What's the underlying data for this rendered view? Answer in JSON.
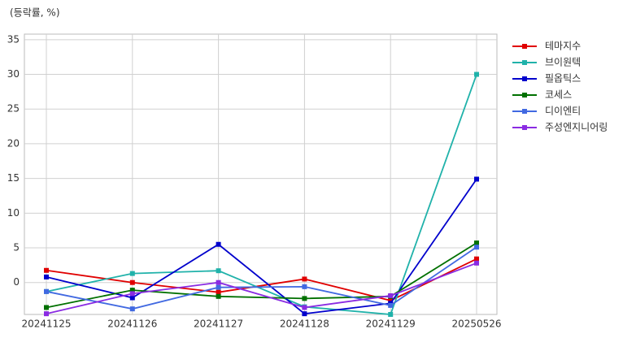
{
  "chart_data": {
    "type": "line",
    "unit_label": "(등락률, %)",
    "categories": [
      "20241125",
      "20241126",
      "20241127",
      "20241128",
      "20241129",
      "20250526"
    ],
    "series": [
      {
        "name": "테마지수",
        "color": "#e00000",
        "values": [
          1.75,
          0.0,
          -1.4,
          0.5,
          -2.6,
          3.4
        ]
      },
      {
        "name": "브이원텍",
        "color": "#20b2aa",
        "values": [
          -1.3,
          1.3,
          1.7,
          -3.5,
          -4.6,
          30.0
        ]
      },
      {
        "name": "필옵틱스",
        "color": "#0000cc",
        "values": [
          0.8,
          -2.2,
          5.5,
          -4.5,
          -3.0,
          14.9
        ]
      },
      {
        "name": "코세스",
        "color": "#007000",
        "values": [
          -3.6,
          -1.1,
          -2.0,
          -2.3,
          -2.0,
          5.7
        ]
      },
      {
        "name": "디이엔티",
        "color": "#4169e1",
        "values": [
          -1.3,
          -3.8,
          -0.7,
          -0.6,
          -3.3,
          5.1
        ]
      },
      {
        "name": "주성엔지니어링",
        "color": "#8a2be2",
        "values": [
          -4.5,
          -1.6,
          0.0,
          -3.6,
          -1.9,
          2.8
        ]
      }
    ],
    "ylim": [
      -4.6,
      35.8
    ],
    "yticks": [
      0,
      5,
      10,
      15,
      20,
      25,
      30,
      35
    ],
    "grid": true,
    "legend": "right"
  }
}
